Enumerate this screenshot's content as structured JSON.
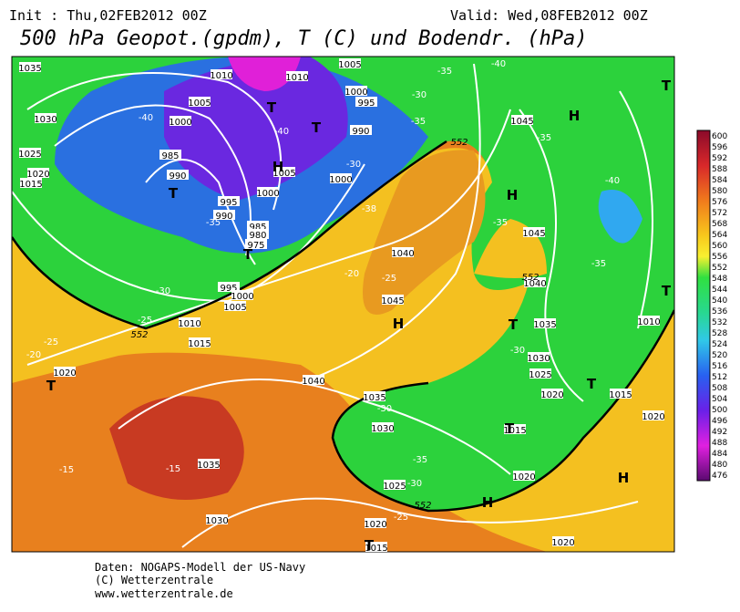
{
  "header": {
    "init": "Init : Thu,02FEB2012 00Z",
    "valid": "Valid: Wed,08FEB2012 00Z",
    "title": "500 hPa Geopot.(gpdm), T (C) und Bodendr. (hPa)"
  },
  "colorbar": {
    "labels": [
      600,
      596,
      592,
      588,
      584,
      580,
      576,
      572,
      568,
      564,
      560,
      556,
      552,
      548,
      544,
      540,
      536,
      532,
      528,
      524,
      520,
      516,
      512,
      508,
      504,
      500,
      496,
      492,
      488,
      484,
      480,
      476
    ]
  },
  "map": {
    "isobars": [
      "1035",
      "1010",
      "1010",
      "1005",
      "1030",
      "1005",
      "1000",
      "1000",
      "995",
      "990",
      "1025",
      "1020",
      "1015",
      "985",
      "990",
      "1005",
      "1000",
      "995",
      "990",
      "985",
      "980",
      "975",
      "1000",
      "1045",
      "1045",
      "1040",
      "1045",
      "995",
      "1000",
      "1005",
      "1010",
      "1015",
      "1020",
      "1040",
      "1035",
      "1030",
      "1035",
      "1040",
      "1030",
      "1025",
      "1020",
      "1015",
      "1010",
      "1015",
      "1020",
      "1025",
      "1020",
      "1020",
      "1015",
      "1035",
      "1030",
      "1020"
    ],
    "temperatures": [
      "-35",
      "-40",
      "-30",
      "-35",
      "-40",
      "-35",
      "-40",
      "-30",
      "-40",
      "-38",
      "-35",
      "-35",
      "-20",
      "-25",
      "-30",
      "-35",
      "-25",
      "-25",
      "-20",
      "-30",
      "-30",
      "-35",
      "-30",
      "-25",
      "-15",
      "-15"
    ],
    "pressure_centers": [
      "T",
      "T",
      "H",
      "T",
      "T",
      "H",
      "T",
      "H",
      "T",
      "H",
      "T",
      "T",
      "T",
      "T",
      "H",
      "H",
      "T"
    ],
    "height_labels": [
      "552",
      "552",
      "552",
      "552"
    ]
  },
  "footer": {
    "lines": [
      "Daten: NOGAPS-Modell der US-Navy",
      "(C) Wetterzentrale",
      "www.wetterzentrale.de"
    ]
  }
}
